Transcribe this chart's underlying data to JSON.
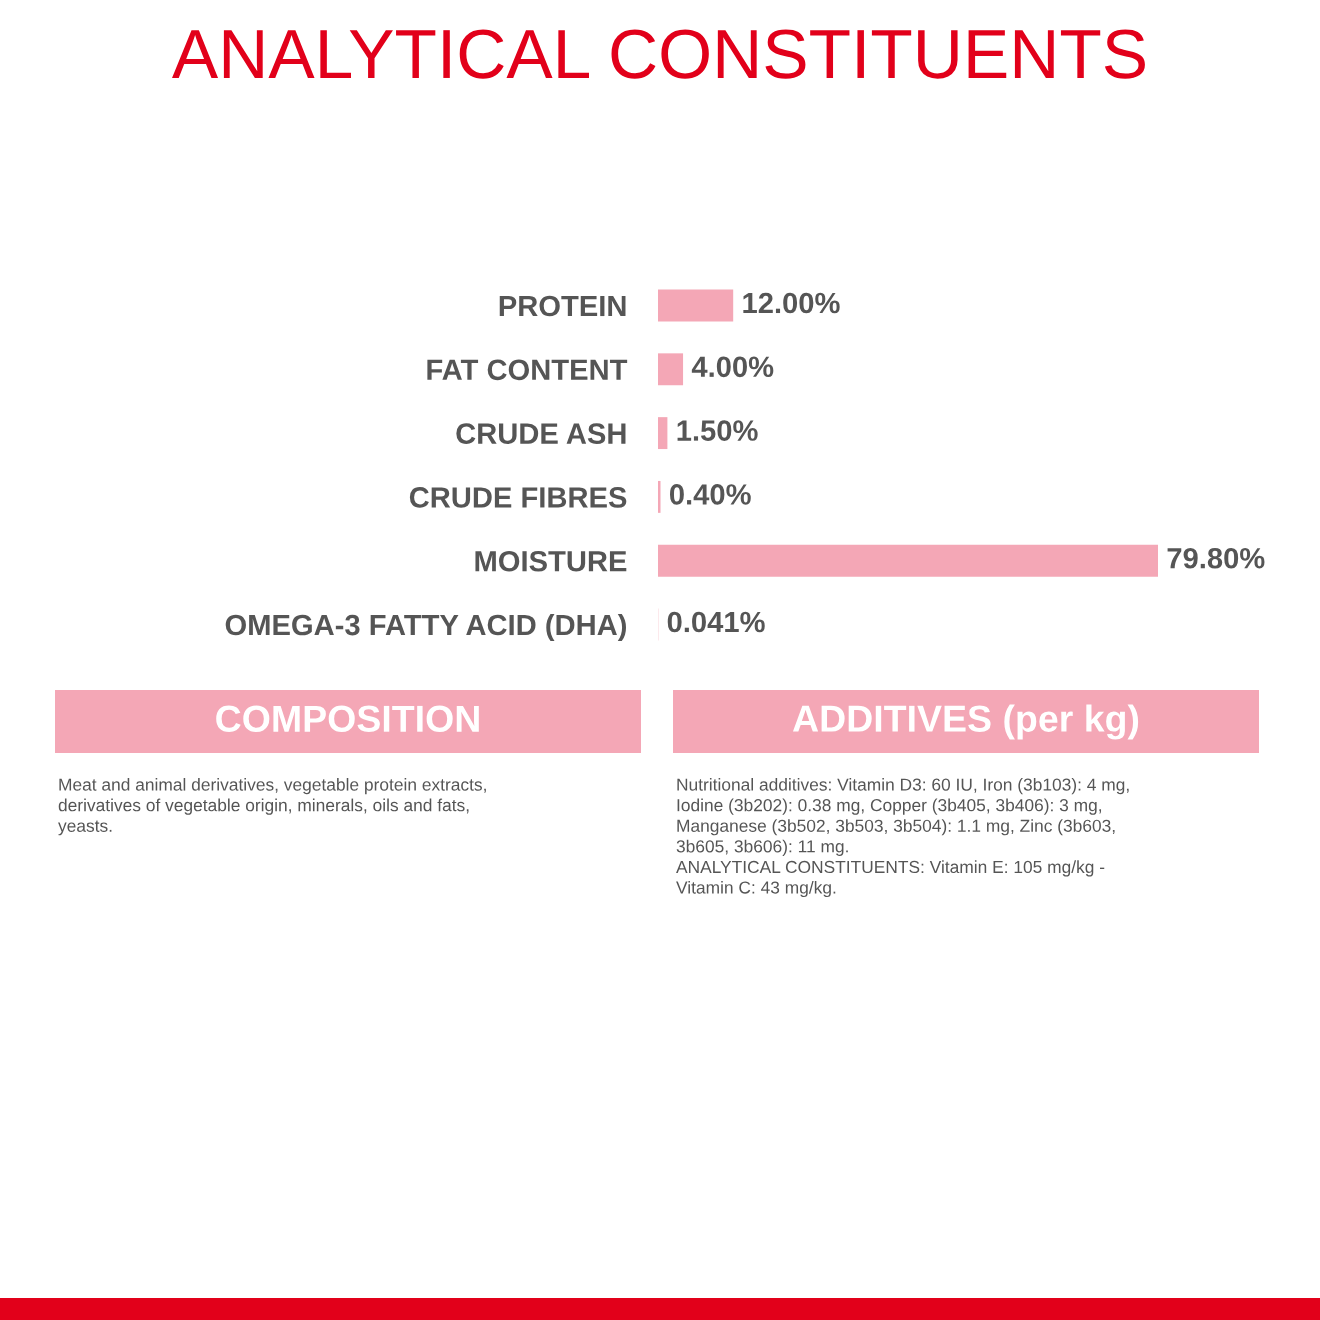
{
  "chart_data": {
    "type": "bar",
    "orientation": "horizontal",
    "title": "ANALYTICAL CONSTITUENTS",
    "categories": [
      "PROTEIN",
      "FAT CONTENT",
      "CRUDE ASH",
      "CRUDE FIBRES",
      "MOISTURE",
      "OMEGA-3 FATTY ACID (DHA)"
    ],
    "values": [
      12,
      4,
      1.5,
      0.4,
      79.8,
      0.041
    ],
    "value_labels": [
      "12.00%",
      "4.00%",
      "1.50%",
      "0.40%",
      "79.80%",
      "0.041%"
    ],
    "color": "#f4a7b6",
    "tick_labels": "y",
    "grid": false,
    "legend": false,
    "annotations": [
      "COMPOSITION",
      "Meat and animal derivatives, vegetable protein extracts,\nderivatives of vegetable origin, minerals, oils and fats,\nyeasts.",
      "ADDITIVES (per kg)",
      "Nutritional additives: Vitamin D3: 60 IU, Iron (3b103): 4 mg,\nIodine (3b202): 0.38 mg, Copper (3b405, 3b406): 3 mg,\nManganese (3b502, 3b503, 3b504): 1.1 mg, Zinc (3b603,\n3b605, 3b606): 11 mg.\nANALYTICAL CONSTITUENTS: Vitamin E: 105 mg/kg -\nVitamin C: 43 mg/kg."
    ]
  }
}
